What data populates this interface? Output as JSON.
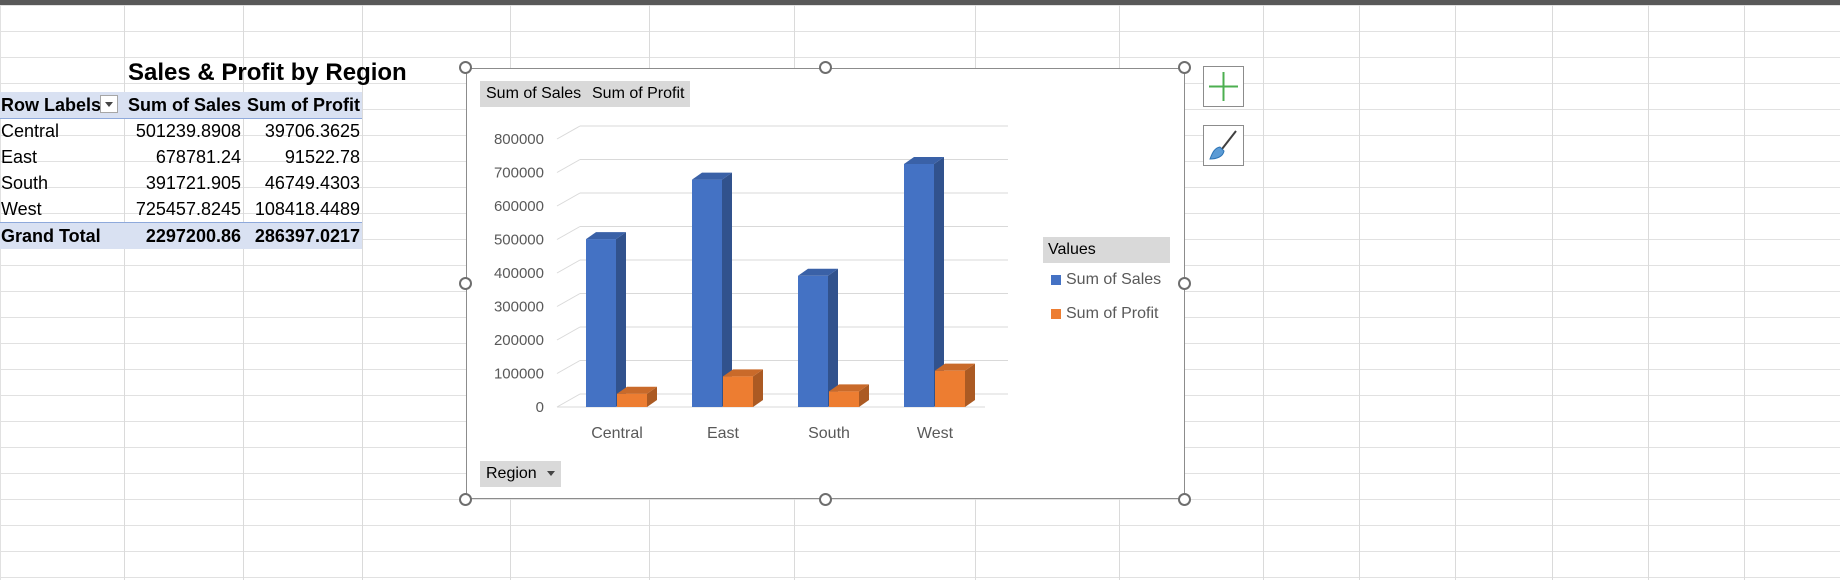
{
  "pivot": {
    "title": "Sales & Profit by Region",
    "headers": {
      "row_labels": "Row Labels",
      "sum_sales": "Sum of Sales",
      "sum_profit": "Sum of Profit"
    },
    "rows": [
      {
        "label": "Central",
        "sales": "501239.8908",
        "profit": "39706.3625"
      },
      {
        "label": "East",
        "sales": "678781.24",
        "profit": "91522.78"
      },
      {
        "label": "South",
        "sales": "391721.905",
        "profit": "46749.4303"
      },
      {
        "label": "West",
        "sales": "725457.8245",
        "profit": "108418.4489"
      }
    ],
    "total": {
      "label": "Grand Total",
      "sales": "2297200.86",
      "profit": "286397.0217"
    }
  },
  "chart": {
    "field_buttons": {
      "sales": "Sum of Sales",
      "profit": "Sum of Profit",
      "axis": "Region"
    },
    "legend": {
      "title": "Values",
      "sales": "Sum of Sales",
      "profit": "Sum of Profit"
    },
    "side_buttons": {
      "add": "plus-icon",
      "style": "paintbrush-icon"
    }
  },
  "chart_data": {
    "type": "bar",
    "categories": [
      "Central",
      "East",
      "South",
      "West"
    ],
    "series": [
      {
        "name": "Sum of Sales",
        "values": [
          501239.8908,
          678781.24,
          391721.905,
          725457.8245
        ],
        "color": "#4472c4"
      },
      {
        "name": "Sum of Profit",
        "values": [
          39706.3625,
          91522.78,
          46749.4303,
          108418.4489
        ],
        "color": "#ed7d31"
      }
    ],
    "ylim": [
      0,
      800000
    ],
    "yticks": [
      "0",
      "100000",
      "200000",
      "300000",
      "400000",
      "500000",
      "600000",
      "700000",
      "800000"
    ],
    "grid": true,
    "legend_position": "right"
  }
}
